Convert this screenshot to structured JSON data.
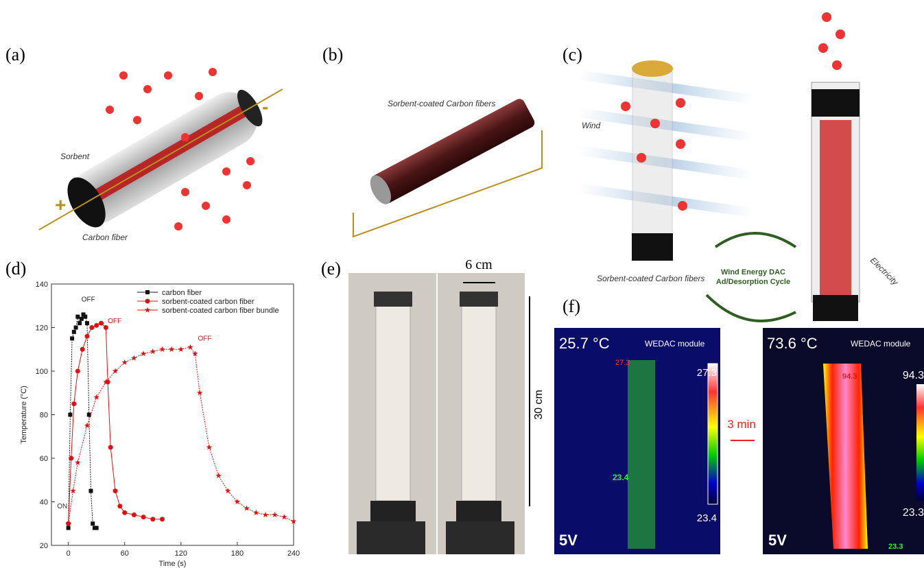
{
  "panel_a": {
    "label": "(a)",
    "sorbent": "Sorbent",
    "carbon_fiber": "Carbon fiber",
    "plus": "+",
    "minus": "-"
  },
  "panel_b": {
    "label": "(b)",
    "sorbent_coated": "Sorbent-coated Carbon fibers"
  },
  "panel_c": {
    "label": "(c)",
    "wind": "Wind",
    "sorbent_coated": "Sorbent-coated Carbon fibers",
    "cycle_line1": "Wind Energy DAC",
    "cycle_line2": "Ad/Desorption Cycle",
    "electricity": "Electricity"
  },
  "panel_d": {
    "label": "(d)"
  },
  "panel_e": {
    "label": "(e)",
    "width": "6 cm",
    "height": "30 cm"
  },
  "panel_f": {
    "label": "(f)",
    "arrow": "3 min",
    "left": {
      "temp": "25.7 °C",
      "module": "WEDAC module",
      "spot": "27.3",
      "scale_max": "27.3",
      "scale_min": "23.4",
      "cursor": "23.4",
      "voltage": "5V"
    },
    "right": {
      "temp": "73.6 °C",
      "module": "WEDAC module",
      "spot": "94.3",
      "scale_max": "94.3",
      "scale_min": "23.3",
      "cursor": "23.3",
      "voltage": "5V"
    }
  },
  "chart_data": {
    "type": "line",
    "x_label": "Time (s)",
    "y_label": "Temperature (°C)",
    "xlim": [
      -18,
      240
    ],
    "xticks": [
      0,
      60,
      120,
      180,
      240
    ],
    "ylim": [
      20,
      140
    ],
    "yticks": [
      20,
      40,
      60,
      80,
      100,
      120,
      140
    ],
    "legend": "top",
    "annotations": [
      "OFF",
      "OFF",
      "OFF",
      "ON"
    ],
    "series": [
      {
        "name": "carbon fiber",
        "color": "#111111",
        "marker": "square",
        "x": [
          0,
          2,
          4,
          6,
          8,
          10,
          12,
          14,
          16,
          18,
          20,
          22,
          24,
          26,
          28,
          30
        ],
        "values": [
          28,
          80,
          115,
          118,
          120,
          125,
          122,
          124,
          126,
          125,
          122,
          80,
          45,
          30,
          28,
          28
        ]
      },
      {
        "name": "sorbent-coated carbon fiber",
        "color": "#e01010",
        "marker": "circle",
        "x": [
          0,
          3,
          6,
          10,
          15,
          20,
          25,
          30,
          35,
          40,
          42,
          45,
          50,
          55,
          60,
          70,
          80,
          90,
          100
        ],
        "values": [
          30,
          60,
          85,
          100,
          110,
          116,
          120,
          121,
          122,
          120,
          95,
          65,
          45,
          38,
          35,
          34,
          33,
          32,
          32
        ]
      },
      {
        "name": "sorbent-coated carbon fiber bundle",
        "color": "#e01010",
        "marker": "star",
        "x": [
          0,
          5,
          10,
          20,
          30,
          40,
          50,
          60,
          70,
          80,
          90,
          100,
          110,
          120,
          130,
          135,
          140,
          150,
          160,
          170,
          180,
          190,
          200,
          210,
          220,
          230,
          240
        ],
        "values": [
          30,
          45,
          58,
          75,
          88,
          95,
          100,
          104,
          106,
          108,
          109,
          110,
          110,
          110,
          111,
          108,
          90,
          65,
          52,
          45,
          40,
          37,
          35,
          34,
          34,
          33,
          31
        ]
      }
    ]
  }
}
